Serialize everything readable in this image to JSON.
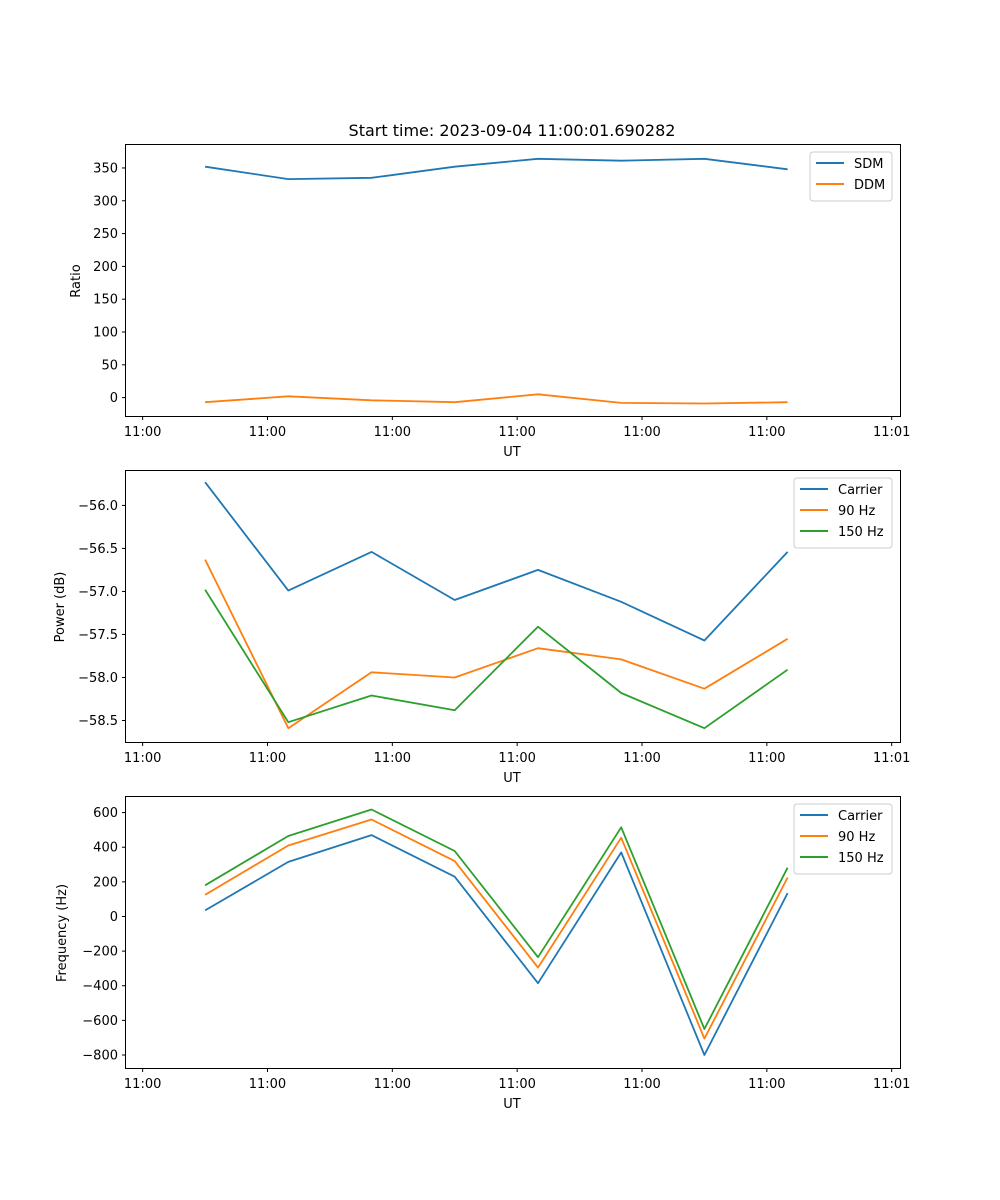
{
  "chart_data": [
    {
      "type": "line",
      "title": "Start time: 2023-09-04 11:00:01.690282",
      "xlabel": "UT",
      "ylabel": "Ratio",
      "xlim": [
        -0.2,
        9.1
      ],
      "ylim": [
        -28,
        385
      ],
      "x": [
        0.75,
        1.75,
        2.75,
        3.75,
        4.75,
        5.75,
        6.75,
        7.75
      ],
      "x_ticks": [
        0,
        1.5,
        3,
        4.5,
        6,
        7.5,
        9
      ],
      "x_tick_labels": [
        "11:00",
        "11:00",
        "11:00",
        "11:00",
        "11:00",
        "11:00",
        "11:01"
      ],
      "y_ticks": [
        0,
        50,
        100,
        150,
        200,
        250,
        300,
        350
      ],
      "y_tick_labels": [
        "0",
        "50",
        "100",
        "150",
        "200",
        "250",
        "300",
        "350"
      ],
      "legend_position": "top-right",
      "series": [
        {
          "name": "SDM",
          "color": "#1f77b4",
          "values": [
            352,
            333,
            335,
            352,
            364,
            361,
            364,
            348
          ]
        },
        {
          "name": "DDM",
          "color": "#ff7f0e",
          "values": [
            -7,
            2,
            -4,
            -7,
            5,
            -8,
            -9,
            -7
          ]
        }
      ]
    },
    {
      "type": "line",
      "title": "",
      "xlabel": "UT",
      "ylabel": "Power (dB)",
      "xlim": [
        -0.2,
        9.1
      ],
      "ylim": [
        -58.75,
        -55.6
      ],
      "x": [
        0.75,
        1.75,
        2.75,
        3.75,
        4.75,
        5.75,
        6.75,
        7.75
      ],
      "x_ticks": [
        0,
        1.5,
        3,
        4.5,
        6,
        7.5,
        9
      ],
      "x_tick_labels": [
        "11:00",
        "11:00",
        "11:00",
        "11:00",
        "11:00",
        "11:00",
        "11:01"
      ],
      "y_ticks": [
        -58.5,
        -58.0,
        -57.5,
        -57.0,
        -56.5,
        -56.0
      ],
      "y_tick_labels": [
        "−58.5",
        "−58.0",
        "−57.5",
        "−57.0",
        "−56.5",
        "−56.0"
      ],
      "legend_position": "top-right",
      "series": [
        {
          "name": "Carrier",
          "color": "#1f77b4",
          "values": [
            -55.73,
            -56.99,
            -56.54,
            -57.1,
            -56.75,
            -57.12,
            -57.57,
            -56.54
          ]
        },
        {
          "name": "90 Hz",
          "color": "#ff7f0e",
          "values": [
            -56.63,
            -58.59,
            -57.94,
            -58.0,
            -57.66,
            -57.79,
            -58.13,
            -57.55
          ]
        },
        {
          "name": "150 Hz",
          "color": "#2ca02c",
          "values": [
            -56.98,
            -58.52,
            -58.21,
            -58.38,
            -57.41,
            -58.18,
            -58.59,
            -57.91
          ]
        }
      ]
    },
    {
      "type": "line",
      "title": "",
      "xlabel": "UT",
      "ylabel": "Frequency (Hz)",
      "xlim": [
        -0.2,
        9.1
      ],
      "ylim": [
        -875,
        690
      ],
      "x": [
        0.75,
        1.75,
        2.75,
        3.75,
        4.75,
        5.75,
        6.75,
        7.75
      ],
      "x_ticks": [
        0,
        1.5,
        3,
        4.5,
        6,
        7.5,
        9
      ],
      "x_tick_labels": [
        "11:00",
        "11:00",
        "11:00",
        "11:00",
        "11:00",
        "11:00",
        "11:01"
      ],
      "y_ticks": [
        -800,
        -600,
        -400,
        -200,
        0,
        200,
        400,
        600
      ],
      "y_tick_labels": [
        "−800",
        "−600",
        "−400",
        "−200",
        "0",
        "200",
        "400",
        "600"
      ],
      "legend_position": "top-right",
      "series": [
        {
          "name": "Carrier",
          "color": "#1f77b4",
          "values": [
            35,
            315,
            470,
            230,
            -385,
            370,
            -800,
            135
          ]
        },
        {
          "name": "90 Hz",
          "color": "#ff7f0e",
          "values": [
            125,
            410,
            560,
            320,
            -295,
            455,
            -705,
            225
          ]
        },
        {
          "name": "150 Hz",
          "color": "#2ca02c",
          "values": [
            180,
            465,
            618,
            378,
            -235,
            515,
            -650,
            282
          ]
        }
      ]
    }
  ]
}
